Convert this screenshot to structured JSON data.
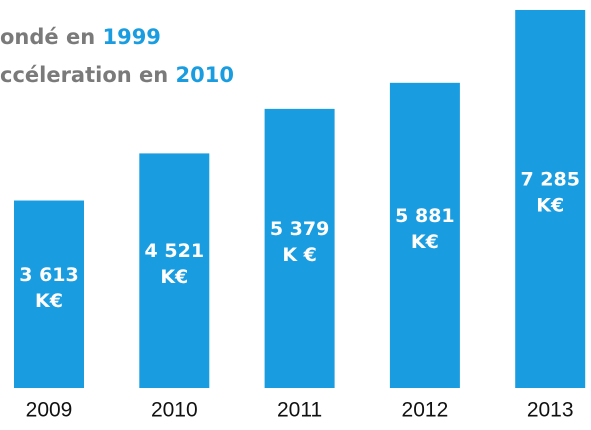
{
  "chart_data": {
    "type": "bar",
    "title_lines": [
      [
        "ondé en",
        "1999"
      ],
      [
        "ccéleration en",
        "2010"
      ]
    ],
    "categories": [
      "2009",
      "2010",
      "2011",
      "2012",
      "2013"
    ],
    "values": [
      3613,
      4521,
      5379,
      5881,
      7285
    ],
    "value_labels": [
      [
        "3 613",
        "K€"
      ],
      [
        "4 521",
        "K€"
      ],
      [
        "5 379",
        "K €"
      ],
      [
        "5 881",
        "K€"
      ],
      [
        "7 285",
        "K€"
      ]
    ],
    "color": "#1a9de0",
    "ylim": [
      0,
      7400
    ]
  }
}
